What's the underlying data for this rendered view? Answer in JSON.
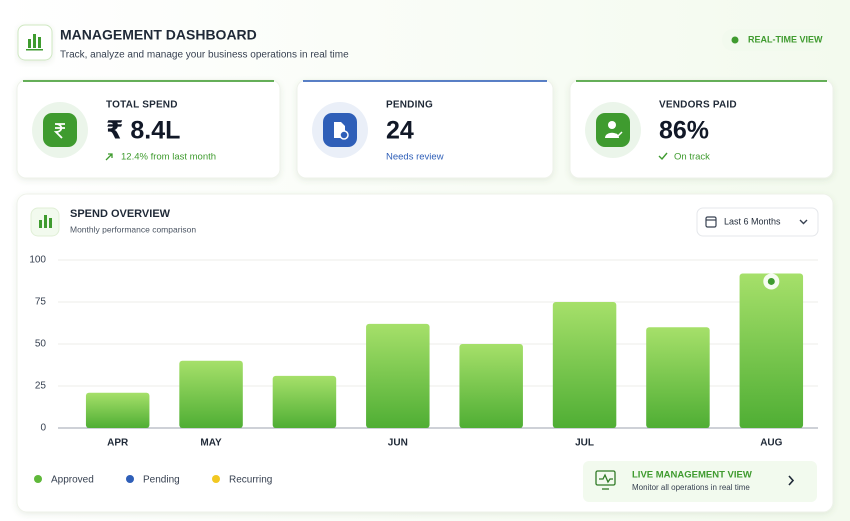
{
  "header": {
    "title": "MANAGEMENT DASHBOARD",
    "subtitle": "Track, analyze and manage your business operations in real time",
    "badge": "REAL-TIME VIEW"
  },
  "cards": [
    {
      "label": "TOTAL SPEND",
      "value": "₹ 8.4L",
      "note": "12.4% from last month",
      "color": "#3f9b2f"
    },
    {
      "label": "PENDING",
      "value": "24",
      "note": "Needs review",
      "color": "#2f5fb8"
    },
    {
      "label": "VENDORS PAID",
      "value": "86%",
      "note": "On track",
      "color": "#3f9b2f"
    }
  ],
  "spend_overview": {
    "title": "SPEND OVERVIEW",
    "subtitle": "Monthly performance comparison",
    "filter": "Last 6 Months"
  },
  "chart_data": {
    "type": "bar",
    "categories": [
      "APR",
      "MAY",
      null,
      "JUN",
      null,
      "JUL",
      null,
      "AUG"
    ],
    "values": [
      21,
      40,
      31,
      62,
      50,
      75,
      60,
      92
    ],
    "color": "#6cc43f",
    "ylim": [
      0,
      100
    ],
    "yticks": [
      0,
      25,
      50,
      75,
      100
    ],
    "grid": true
  },
  "legend": [
    {
      "name": "Approved",
      "color": "#5fb83a"
    },
    {
      "name": "Pending",
      "color": "#2f5fb8"
    },
    {
      "name": "Recurring",
      "color": "#f2c822"
    }
  ],
  "live_view": {
    "title": "LIVE MANAGEMENT VIEW",
    "subtitle": "Monitor all operations in real time"
  }
}
